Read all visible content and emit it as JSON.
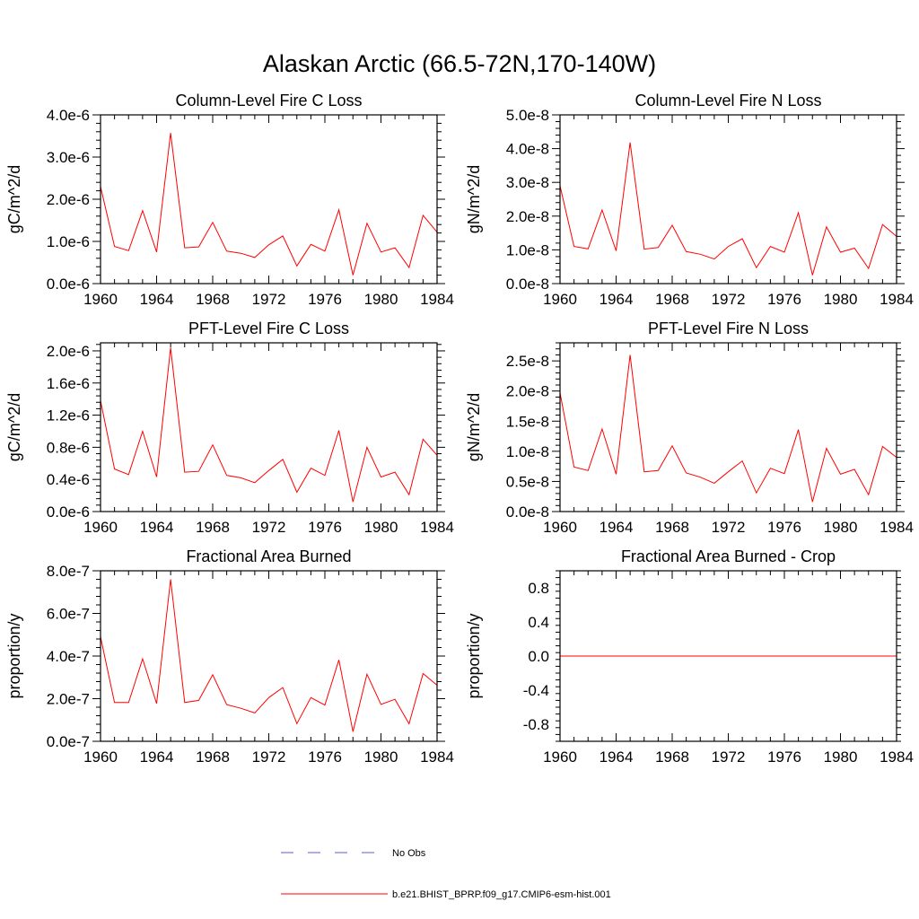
{
  "figure": {
    "title": "Alaskan Arctic (66.5-72N,170-140W)",
    "legend": [
      {
        "label": "No Obs",
        "color": "#5b5bd6",
        "style": "dashed"
      },
      {
        "label": "b.e21.BHIST_BPRP.f09_g17.CMIP6-esm-hist.001",
        "color": "#ff0000",
        "style": "solid"
      }
    ]
  },
  "chart_data": [
    {
      "type": "line",
      "title": "Column-Level Fire C Loss",
      "xlabel": "",
      "ylabel": "gC/m^2/d",
      "xlim": [
        1960,
        1984
      ],
      "xticks": [
        "1960",
        "1964",
        "1968",
        "1972",
        "1976",
        "1980",
        "1984"
      ],
      "ylim": [
        0,
        4e-06
      ],
      "yticks": [
        "0.0e-6",
        "1.0e-6",
        "2.0e-6",
        "3.0e-6",
        "4.0e-6"
      ],
      "x": [
        1960,
        1961,
        1962,
        1963,
        1964,
        1965,
        1966,
        1967,
        1968,
        1969,
        1970,
        1971,
        1972,
        1973,
        1974,
        1975,
        1976,
        1977,
        1978,
        1979,
        1980,
        1981,
        1982,
        1983,
        1984
      ],
      "series": [
        {
          "color": "#ff0000",
          "values": [
            2.3e-06,
            8.8e-07,
            7.8e-07,
            1.73e-06,
            7.5e-07,
            3.57e-06,
            8.5e-07,
            8.7e-07,
            1.45e-06,
            7.7e-07,
            7.2e-07,
            6.2e-07,
            9.2e-07,
            1.13e-06,
            4.2e-07,
            9.3e-07,
            7.7e-07,
            1.75e-06,
            2e-07,
            1.43e-06,
            7.5e-07,
            8.5e-07,
            3.8e-07,
            1.62e-06,
            1.22e-06
          ]
        }
      ]
    },
    {
      "type": "line",
      "title": "Column-Level Fire N Loss",
      "xlabel": "",
      "ylabel": "gN/m^2/d",
      "xlim": [
        1960,
        1984
      ],
      "xticks": [
        "1960",
        "1964",
        "1968",
        "1972",
        "1976",
        "1980",
        "1984"
      ],
      "ylim": [
        0,
        5e-08
      ],
      "yticks": [
        "0.0e-8",
        "1.0e-8",
        "2.0e-8",
        "3.0e-8",
        "4.0e-8",
        "5.0e-8"
      ],
      "x": [
        1960,
        1961,
        1962,
        1963,
        1964,
        1965,
        1966,
        1967,
        1968,
        1969,
        1970,
        1971,
        1972,
        1973,
        1974,
        1975,
        1976,
        1977,
        1978,
        1979,
        1980,
        1981,
        1982,
        1983,
        1984
      ],
      "series": [
        {
          "color": "#ff0000",
          "values": [
            2.9e-08,
            1.1e-08,
            1.03e-08,
            2.18e-08,
            9.7e-09,
            4.18e-08,
            1.02e-08,
            1.07e-08,
            1.73e-08,
            9.5e-09,
            8.7e-09,
            7.3e-09,
            1.1e-08,
            1.33e-08,
            4.7e-09,
            1.1e-08,
            9.3e-09,
            2.1e-08,
            2.5e-09,
            1.68e-08,
            9.3e-09,
            1.05e-08,
            4.5e-09,
            1.75e-08,
            1.4e-08
          ]
        }
      ]
    },
    {
      "type": "line",
      "title": "PFT-Level Fire C Loss",
      "xlabel": "",
      "ylabel": "gC/m^2/d",
      "xlim": [
        1960,
        1984
      ],
      "xticks": [
        "1960",
        "1964",
        "1968",
        "1972",
        "1976",
        "1980",
        "1984"
      ],
      "ylim": [
        0,
        2.1e-06
      ],
      "yticks": [
        "0.0e-6",
        "0.4e-6",
        "0.8e-6",
        "1.2e-6",
        "1.6e-6",
        "2.0e-6"
      ],
      "ytick_values": [
        0,
        4e-07,
        8e-07,
        1.2e-06,
        1.6e-06,
        2e-06
      ],
      "x": [
        1960,
        1961,
        1962,
        1963,
        1964,
        1965,
        1966,
        1967,
        1968,
        1969,
        1970,
        1971,
        1972,
        1973,
        1974,
        1975,
        1976,
        1977,
        1978,
        1979,
        1980,
        1981,
        1982,
        1983,
        1984
      ],
      "series": [
        {
          "color": "#ff0000",
          "values": [
            1.38e-06,
            5.3e-07,
            4.6e-07,
            1e-06,
            4.3e-07,
            2.04e-06,
            4.9e-07,
            5e-07,
            8.3e-07,
            4.5e-07,
            4.2e-07,
            3.6e-07,
            5.1e-07,
            6.5e-07,
            2.4e-07,
            5.4e-07,
            4.5e-07,
            1.01e-06,
            1.2e-07,
            8e-07,
            4.3e-07,
            4.9e-07,
            2.1e-07,
            9e-07,
            7e-07
          ]
        }
      ]
    },
    {
      "type": "line",
      "title": "PFT-Level Fire N Loss",
      "xlabel": "",
      "ylabel": "gN/m^2/d",
      "xlim": [
        1960,
        1984
      ],
      "xticks": [
        "1960",
        "1964",
        "1968",
        "1972",
        "1976",
        "1980",
        "1984"
      ],
      "ylim": [
        0,
        2.8e-08
      ],
      "yticks": [
        "0.0e-8",
        "0.5e-8",
        "1.0e-8",
        "1.5e-8",
        "2.0e-8",
        "2.5e-8"
      ],
      "ytick_values": [
        0,
        5e-09,
        1e-08,
        1.5e-08,
        2e-08,
        2.5e-08
      ],
      "x": [
        1960,
        1961,
        1962,
        1963,
        1964,
        1965,
        1966,
        1967,
        1968,
        1969,
        1970,
        1971,
        1972,
        1973,
        1974,
        1975,
        1976,
        1977,
        1978,
        1979,
        1980,
        1981,
        1982,
        1983,
        1984
      ],
      "series": [
        {
          "color": "#ff0000",
          "values": [
            1.97e-08,
            7.4e-09,
            6.8e-09,
            1.37e-08,
            6.2e-09,
            2.6e-08,
            6.6e-09,
            6.8e-09,
            1.09e-08,
            6.4e-09,
            5.7e-09,
            4.7e-09,
            6.6e-09,
            8.4e-09,
            3.1e-09,
            7.2e-09,
            6.3e-09,
            1.36e-08,
            1.6e-09,
            1.05e-08,
            6.2e-09,
            7e-09,
            2.8e-09,
            1.08e-08,
            9e-09
          ]
        }
      ]
    },
    {
      "type": "line",
      "title": "Fractional Area Burned",
      "xlabel": "",
      "ylabel": "proportion/y",
      "xlim": [
        1960,
        1984
      ],
      "xticks": [
        "1960",
        "1964",
        "1968",
        "1972",
        "1976",
        "1980",
        "1984"
      ],
      "ylim": [
        0,
        8e-07
      ],
      "yticks": [
        "0.0e-7",
        "2.0e-7",
        "4.0e-7",
        "6.0e-7",
        "8.0e-7"
      ],
      "x": [
        1960,
        1961,
        1962,
        1963,
        1964,
        1965,
        1966,
        1967,
        1968,
        1969,
        1970,
        1971,
        1972,
        1973,
        1974,
        1975,
        1976,
        1977,
        1978,
        1979,
        1980,
        1981,
        1982,
        1983,
        1984
      ],
      "series": [
        {
          "color": "#ff0000",
          "values": [
            4.9e-07,
            1.82e-07,
            1.82e-07,
            3.87e-07,
            1.77e-07,
            7.6e-07,
            1.82e-07,
            1.92e-07,
            3.12e-07,
            1.72e-07,
            1.55e-07,
            1.33e-07,
            2.05e-07,
            2.52e-07,
            8.3e-08,
            2.05e-07,
            1.7e-07,
            3.82e-07,
            4.5e-08,
            3.15e-07,
            1.73e-07,
            1.97e-07,
            8.2e-08,
            3.18e-07,
            2.63e-07
          ]
        }
      ]
    },
    {
      "type": "line",
      "title": "Fractional Area Burned - Crop",
      "xlabel": "",
      "ylabel": "proportion/y",
      "xlim": [
        1960,
        1984
      ],
      "xticks": [
        "1960",
        "1964",
        "1968",
        "1972",
        "1976",
        "1980",
        "1984"
      ],
      "ylim": [
        -1,
        1
      ],
      "yticks": [
        "-0.8",
        "-0.4",
        "0.0",
        "0.4",
        "0.8"
      ],
      "ytick_values": [
        -0.8,
        -0.4,
        0,
        0.4,
        0.8
      ],
      "x": [
        1960,
        1961,
        1962,
        1963,
        1964,
        1965,
        1966,
        1967,
        1968,
        1969,
        1970,
        1971,
        1972,
        1973,
        1974,
        1975,
        1976,
        1977,
        1978,
        1979,
        1980,
        1981,
        1982,
        1983,
        1984
      ],
      "series": [
        {
          "color": "#ff0000",
          "values": [
            0,
            0,
            0,
            0,
            0,
            0,
            0,
            0,
            0,
            0,
            0,
            0,
            0,
            0,
            0,
            0,
            0,
            0,
            0,
            0,
            0,
            0,
            0,
            0,
            0
          ]
        }
      ]
    }
  ]
}
